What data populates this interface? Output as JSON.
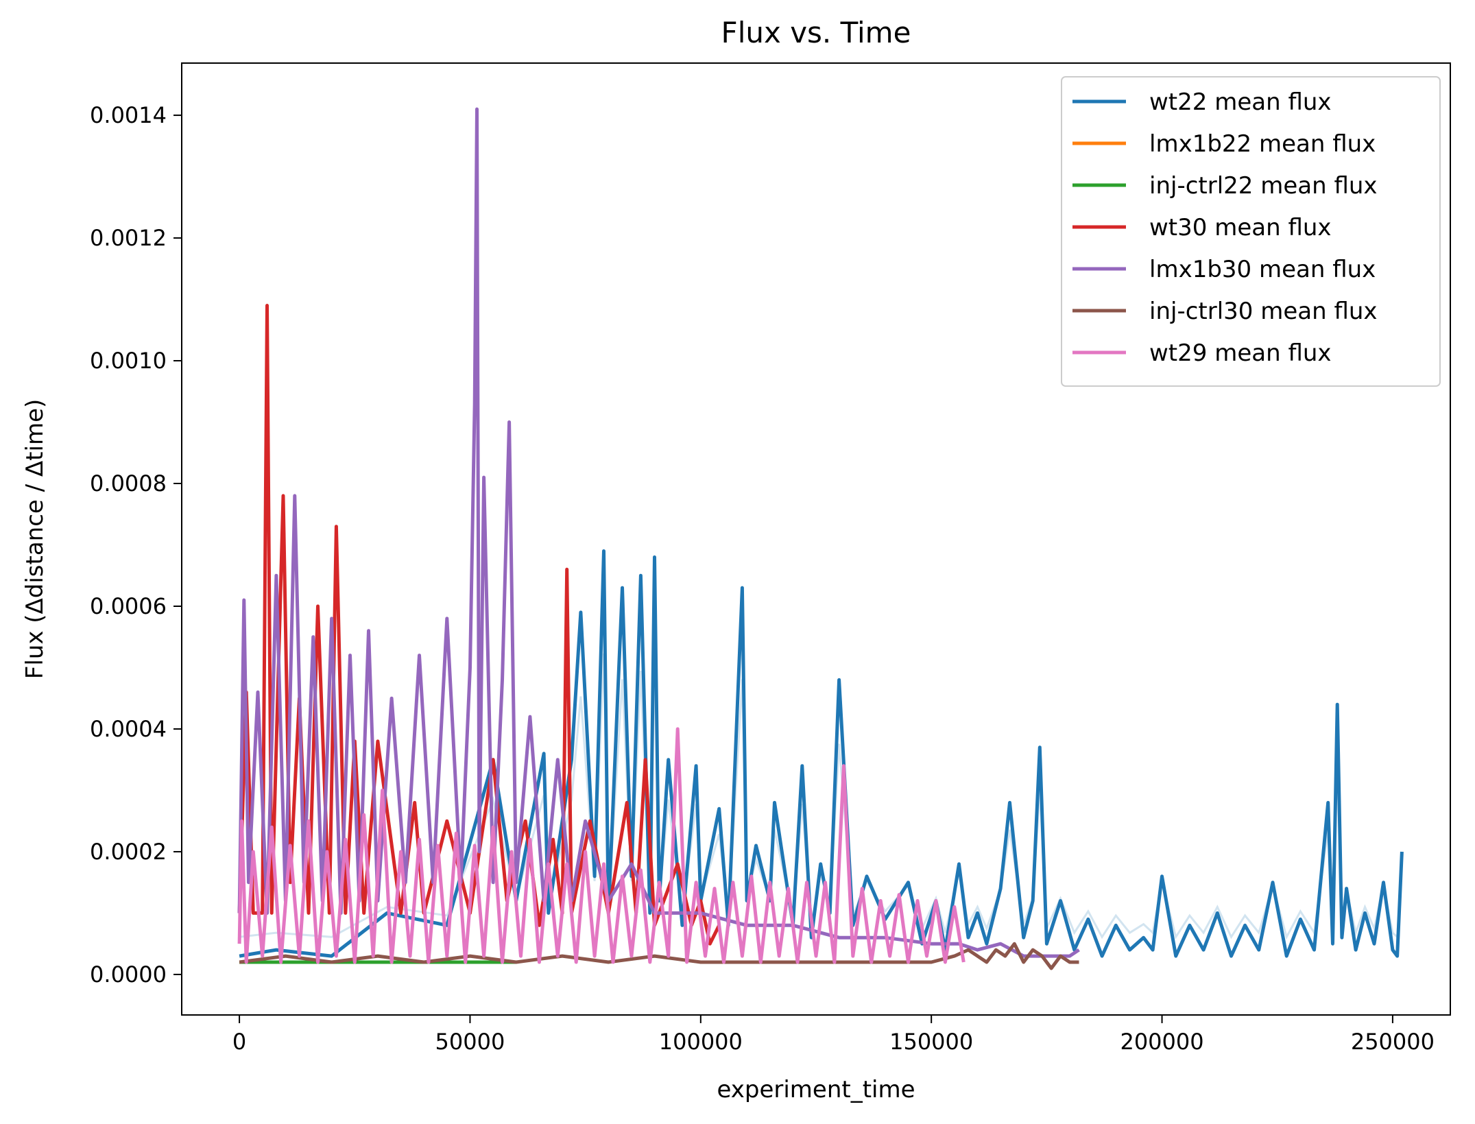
{
  "chart_data": {
    "type": "line",
    "title": "Flux vs. Time",
    "xlabel": "experiment_time",
    "ylabel": "Flux (Δdistance / Δtime)",
    "xlim": [
      -12500,
      262500
    ],
    "ylim": [
      -6.6e-05,
      0.001485
    ],
    "xticks": [
      0,
      50000,
      100000,
      150000,
      200000,
      250000
    ],
    "xtick_labels": [
      "0",
      "50000",
      "100000",
      "150000",
      "200000",
      "250000"
    ],
    "yticks": [
      0.0,
      0.0002,
      0.0004,
      0.0006,
      0.0008,
      0.001,
      0.0012,
      0.0014
    ],
    "ytick_labels": [
      "0.0000",
      "0.0002",
      "0.0004",
      "0.0006",
      "0.0008",
      "0.0010",
      "0.0012",
      "0.0014"
    ],
    "grid": false,
    "legend_position": "top-right",
    "series": [
      {
        "name": "wt22 mean flux",
        "color": "#1f77b4",
        "x": [
          0,
          8000,
          20000,
          32000,
          45000,
          55000,
          60000,
          66000,
          67000,
          72000,
          74000,
          77000,
          79000,
          80000,
          83000,
          85000,
          87000,
          89000,
          90000,
          91000,
          93000,
          96000,
          99000,
          100000,
          104000,
          106000,
          109000,
          110000,
          112000,
          115000,
          116000,
          120000,
          122000,
          124000,
          126000,
          128000,
          130000,
          133000,
          136000,
          140000,
          145000,
          148000,
          151000,
          153000,
          156000,
          158000,
          160000,
          162000,
          165000,
          167000,
          170000,
          172000,
          173500,
          175000,
          178000,
          181000,
          184000,
          187000,
          190000,
          193000,
          196000,
          198000,
          200000,
          203000,
          206000,
          209000,
          212000,
          215000,
          218000,
          221000,
          224000,
          227000,
          230000,
          233000,
          236000,
          237000,
          238000,
          239000,
          240000,
          242000,
          244000,
          246000,
          248000,
          250000,
          251000,
          252000
        ],
        "y": [
          3e-05,
          4e-05,
          3e-05,
          0.0001,
          8e-05,
          0.00035,
          0.00012,
          0.00036,
          0.0001,
          0.00035,
          0.00059,
          0.00016,
          0.00069,
          0.0001,
          0.00063,
          0.00016,
          0.00065,
          0.0001,
          0.00068,
          0.00012,
          0.00035,
          8e-05,
          0.00034,
          0.00012,
          0.00027,
          8e-05,
          0.00063,
          0.00012,
          0.00021,
          0.00012,
          0.00028,
          8e-05,
          0.00034,
          6e-05,
          0.00018,
          0.0001,
          0.00048,
          8e-05,
          0.00016,
          9e-05,
          0.00015,
          5e-05,
          0.00012,
          4e-05,
          0.00018,
          6e-05,
          0.0001,
          5e-05,
          0.00014,
          0.00028,
          6e-05,
          0.00012,
          0.00037,
          5e-05,
          0.00012,
          4e-05,
          9e-05,
          3e-05,
          8e-05,
          4e-05,
          6e-05,
          4e-05,
          0.00016,
          3e-05,
          8e-05,
          4e-05,
          0.0001,
          3e-05,
          8e-05,
          4e-05,
          0.00015,
          3e-05,
          9e-05,
          4e-05,
          0.00028,
          5e-05,
          0.00044,
          6e-05,
          0.00014,
          4e-05,
          0.0001,
          5e-05,
          0.00015,
          4e-05,
          3e-05,
          0.0002
        ]
      },
      {
        "name": "lmx1b22 mean flux",
        "color": "#ff7f0e",
        "x": [
          0,
          20000,
          40000,
          60000
        ],
        "y": [
          2e-05,
          2e-05,
          2e-05,
          2e-05
        ]
      },
      {
        "name": "inj-ctrl22 mean flux",
        "color": "#2ca02c",
        "x": [
          0,
          20000,
          40000,
          60000
        ],
        "y": [
          2e-05,
          2e-05,
          2e-05,
          2e-05
        ]
      },
      {
        "name": "wt30 mean flux",
        "color": "#d62728",
        "x": [
          0,
          1500,
          3000,
          5000,
          6000,
          7000,
          9500,
          11000,
          13000,
          15000,
          17000,
          19500,
          21000,
          23000,
          25000,
          27000,
          30000,
          35000,
          38000,
          40000,
          45000,
          50000,
          55000,
          58000,
          62000,
          65000,
          68000,
          70000,
          71000,
          72000,
          76000,
          80000,
          84000,
          86000,
          88000,
          90000,
          95000,
          98000,
          100000,
          102000,
          104000
        ],
        "y": [
          0.0001,
          0.00046,
          0.0001,
          0.0001,
          0.00109,
          0.0001,
          0.00078,
          0.00015,
          0.00045,
          0.0001,
          0.0006,
          0.0001,
          0.00073,
          0.0001,
          0.00038,
          0.0001,
          0.00038,
          0.0001,
          0.00028,
          0.0001,
          0.00025,
          0.0001,
          0.00035,
          0.00012,
          0.00025,
          8e-05,
          0.00022,
          0.0001,
          0.00066,
          0.0001,
          0.00025,
          0.0001,
          0.00028,
          0.0001,
          0.00035,
          8e-05,
          0.00018,
          8e-05,
          0.00012,
          5e-05,
          8e-05
        ]
      },
      {
        "name": "lmx1b30 mean flux",
        "color": "#9467bd",
        "x": [
          0,
          1000,
          2000,
          4000,
          6000,
          8000,
          10000,
          12000,
          14000,
          16000,
          18000,
          20000,
          22000,
          24000,
          26000,
          28000,
          30000,
          33000,
          36000,
          39000,
          42000,
          45000,
          48000,
          50000,
          51000,
          51500,
          52000,
          53000,
          55000,
          57000,
          58500,
          60000,
          63000,
          66000,
          69000,
          72000,
          75000,
          80000,
          85000,
          90000,
          100000,
          110000,
          120000,
          130000,
          140000,
          150000,
          156000,
          160000,
          165000,
          170000,
          175000,
          180000,
          182000
        ],
        "y": [
          0.0001,
          0.00061,
          0.00015,
          0.00046,
          0.0001,
          0.00065,
          0.00012,
          0.00078,
          0.00015,
          0.00055,
          0.00012,
          0.00058,
          0.0001,
          0.00052,
          0.00012,
          0.00056,
          0.00012,
          0.00045,
          0.00015,
          0.00052,
          0.00015,
          0.00058,
          0.00015,
          0.0005,
          0.00093,
          0.00141,
          0.0002,
          0.00081,
          0.00015,
          0.00048,
          0.0009,
          0.00015,
          0.00042,
          0.00012,
          0.00035,
          0.00012,
          0.00025,
          0.00012,
          0.00018,
          0.0001,
          0.0001,
          8e-05,
          8e-05,
          6e-05,
          6e-05,
          5e-05,
          5e-05,
          4e-05,
          5e-05,
          3e-05,
          3e-05,
          3e-05,
          4e-05
        ]
      },
      {
        "name": "inj-ctrl30 mean flux",
        "color": "#8c564b",
        "x": [
          0,
          10000,
          20000,
          30000,
          40000,
          50000,
          60000,
          70000,
          80000,
          90000,
          100000,
          110000,
          120000,
          130000,
          140000,
          150000,
          155000,
          158000,
          160000,
          162000,
          164000,
          166000,
          168000,
          170000,
          172000,
          174000,
          176000,
          178000,
          180000,
          182000
        ],
        "y": [
          2e-05,
          3e-05,
          2e-05,
          3e-05,
          2e-05,
          3e-05,
          2e-05,
          3e-05,
          2e-05,
          3e-05,
          2e-05,
          2e-05,
          2e-05,
          2e-05,
          2e-05,
          2e-05,
          3e-05,
          4e-05,
          3e-05,
          2e-05,
          4e-05,
          3e-05,
          5e-05,
          2e-05,
          4e-05,
          3e-05,
          1e-05,
          3e-05,
          2e-05,
          2e-05
        ]
      },
      {
        "name": "wt29 mean flux",
        "color": "#e377c2",
        "x": [
          0,
          500,
          1500,
          3000,
          5000,
          7000,
          9000,
          11000,
          13000,
          15000,
          17000,
          19000,
          21000,
          23000,
          25000,
          27000,
          29000,
          31000,
          33000,
          35000,
          37000,
          39000,
          41000,
          43000,
          45000,
          47000,
          49000,
          51000,
          53000,
          55000,
          57000,
          59000,
          61000,
          63000,
          65000,
          67000,
          69000,
          71000,
          73000,
          75000,
          77000,
          79000,
          81000,
          83000,
          85000,
          87000,
          89000,
          91000,
          93000,
          95000,
          97000,
          99000,
          101000,
          103000,
          105000,
          107000,
          109000,
          111000,
          113000,
          115000,
          117000,
          119000,
          121000,
          123000,
          125000,
          127000,
          129000,
          131000,
          133000,
          135000,
          137000,
          139000,
          141000,
          143000,
          145000,
          147000,
          149000,
          151000,
          153000,
          155000,
          157000
        ],
        "y": [
          5e-05,
          0.00025,
          2e-05,
          0.0002,
          3e-05,
          0.00024,
          2e-05,
          0.00021,
          3e-05,
          0.00025,
          2e-05,
          0.0002,
          3e-05,
          0.00022,
          2e-05,
          0.00026,
          3e-05,
          0.0003,
          2e-05,
          0.0002,
          3e-05,
          0.00022,
          2e-05,
          0.00021,
          3e-05,
          0.00023,
          2e-05,
          0.00021,
          3e-05,
          0.00024,
          2e-05,
          0.0002,
          3e-05,
          0.00022,
          2e-05,
          0.00018,
          3e-05,
          0.00018,
          2e-05,
          0.0002,
          3e-05,
          0.00018,
          2e-05,
          0.00016,
          3e-05,
          0.00017,
          2e-05,
          0.00015,
          3e-05,
          0.0004,
          2e-05,
          0.00015,
          3e-05,
          0.00014,
          2e-05,
          0.00015,
          3e-05,
          0.00016,
          2e-05,
          0.00015,
          3e-05,
          0.00014,
          2e-05,
          0.00015,
          3e-05,
          0.00015,
          2e-05,
          0.00034,
          3e-05,
          0.00014,
          2e-05,
          0.00012,
          3e-05,
          0.00013,
          2e-05,
          0.00012,
          3e-05,
          0.00012,
          2e-05,
          0.00011,
          2e-05
        ]
      }
    ]
  }
}
